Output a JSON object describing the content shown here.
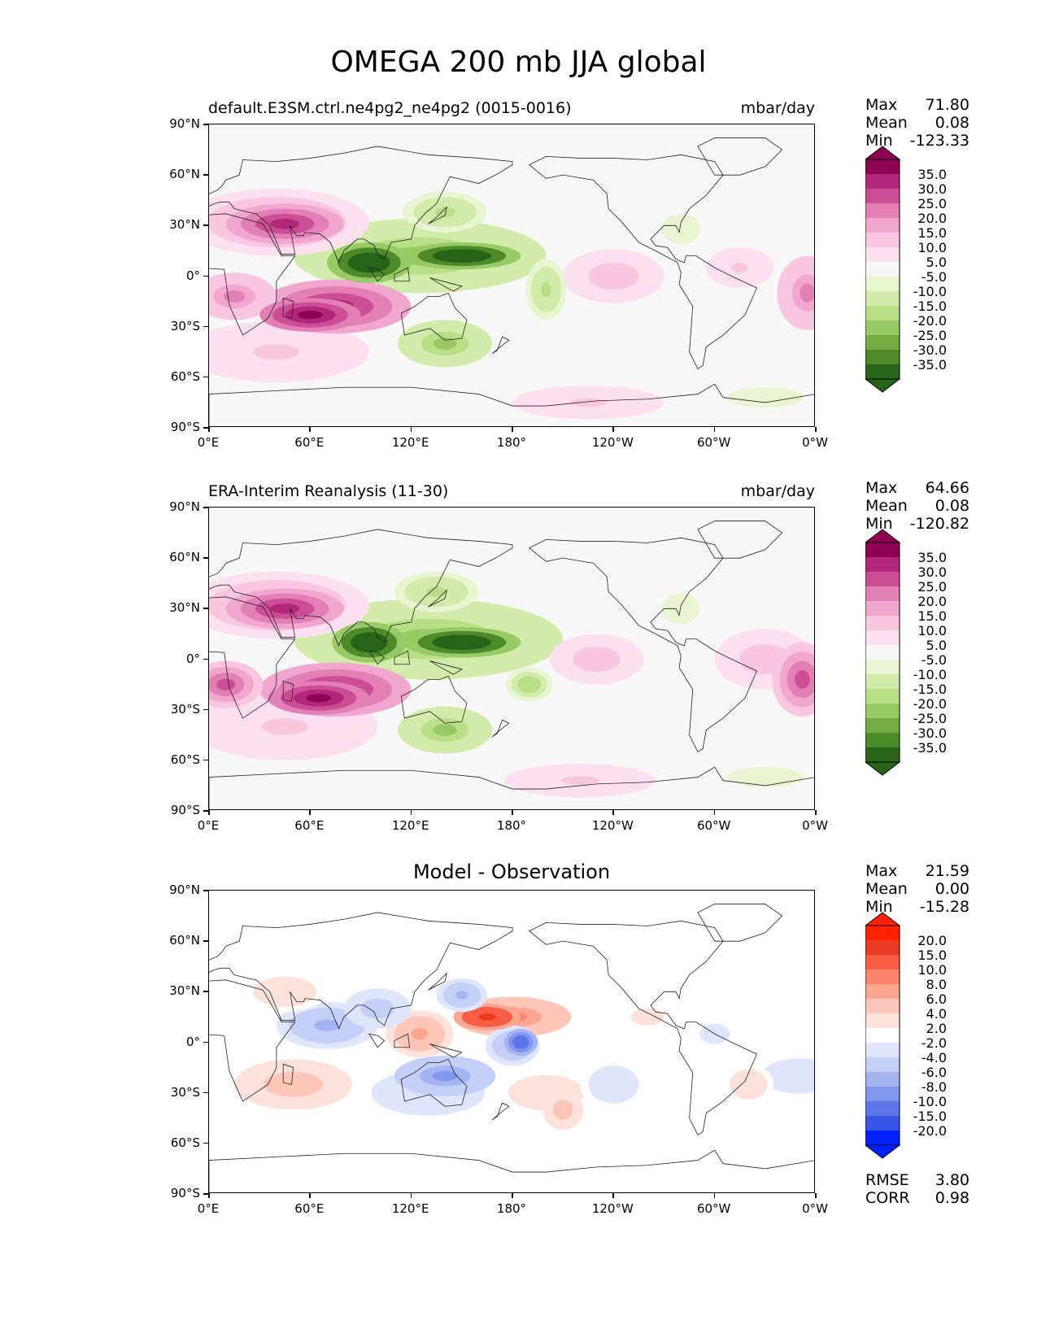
{
  "figure": {
    "title": "OMEGA 200 mb JJA global"
  },
  "axis": {
    "lat_ticks": [
      "90°N",
      "60°N",
      "30°N",
      "0°",
      "30°S",
      "60°S",
      "90°S"
    ],
    "lon_ticks": [
      "0°E",
      "60°E",
      "120°E",
      "180°",
      "120°W",
      "60°W",
      "0°W"
    ]
  },
  "colors": {
    "pos_ramp": [
      "#f7f7f7",
      "#fde0ef",
      "#f9c6df",
      "#f1a6cd",
      "#e27fb4",
      "#cc4e97",
      "#b2277a",
      "#8e0152"
    ],
    "neg_ramp": [
      "#f7f7f7",
      "#e8f5d0",
      "#d2ebaa",
      "#b8de86",
      "#97c964",
      "#72ac43",
      "#4d8b28",
      "#276419"
    ],
    "diff_pos": [
      "#ffffff",
      "#fde2dc",
      "#fcc6b8",
      "#fca692",
      "#fb846a",
      "#f65d42",
      "#ea3a22",
      "#ff2200"
    ],
    "diff_neg": [
      "#ffffff",
      "#dfe5fb",
      "#c4cff7",
      "#a4b3f2",
      "#8196ee",
      "#5c76ea",
      "#3955e6",
      "#0022ff"
    ]
  },
  "chart_data": [
    {
      "type": "heatmap",
      "title": "default.E3SM.ctrl.ne4pg2_ne4pg2 (0015-0016)",
      "units": "mbar/day",
      "xlabel": "",
      "ylabel": "",
      "xlim": [
        0,
        360
      ],
      "ylim": [
        -90,
        90
      ],
      "stats": {
        "max_label": "Max",
        "max": "71.80",
        "mean_label": "Mean",
        "mean": "0.08",
        "min_label": "Min",
        "min": "-123.33"
      },
      "colorbar_levels": [
        "35.0",
        "30.0",
        "25.0",
        "20.0",
        "15.0",
        "10.0",
        "5.0",
        "-5.0",
        "-10.0",
        "-15.0",
        "-20.0",
        "-25.0",
        "-30.0",
        "-35.0"
      ],
      "features": [
        {
          "lon": 60,
          "lat": -23,
          "value": 40,
          "rx": 30,
          "ry": 10
        },
        {
          "lon": 75,
          "lat": -18,
          "value": 30,
          "rx": 45,
          "ry": 16
        },
        {
          "lon": 15,
          "lat": -12,
          "value": 20,
          "rx": 25,
          "ry": 14
        },
        {
          "lon": 45,
          "lat": 31,
          "value": 30,
          "rx": 35,
          "ry": 12
        },
        {
          "lon": 40,
          "lat": 32,
          "value": 15,
          "rx": 55,
          "ry": 20
        },
        {
          "lon": 40,
          "lat": -45,
          "value": 10,
          "rx": 55,
          "ry": 18
        },
        {
          "lon": 95,
          "lat": 8,
          "value": -45,
          "rx": 25,
          "ry": 12
        },
        {
          "lon": 150,
          "lat": 12,
          "value": -45,
          "rx": 35,
          "ry": 8
        },
        {
          "lon": 125,
          "lat": 12,
          "value": -20,
          "rx": 75,
          "ry": 22
        },
        {
          "lon": 140,
          "lat": 38,
          "value": -15,
          "rx": 25,
          "ry": 12
        },
        {
          "lon": 140,
          "lat": -40,
          "value": -20,
          "rx": 28,
          "ry": 14
        },
        {
          "lon": 200,
          "lat": -8,
          "value": -15,
          "rx": 12,
          "ry": 18
        },
        {
          "lon": 240,
          "lat": 0,
          "value": 12,
          "rx": 30,
          "ry": 16
        },
        {
          "lon": 355,
          "lat": -10,
          "value": 20,
          "rx": 18,
          "ry": 22
        },
        {
          "lon": 315,
          "lat": 5,
          "value": 10,
          "rx": 20,
          "ry": 12
        },
        {
          "lon": 280,
          "lat": 28,
          "value": -8,
          "rx": 15,
          "ry": 12
        },
        {
          "lon": 225,
          "lat": -75,
          "value": 10,
          "rx": 45,
          "ry": 10
        },
        {
          "lon": 330,
          "lat": -72,
          "value": -8,
          "rx": 30,
          "ry": 8
        }
      ]
    },
    {
      "type": "heatmap",
      "title": "ERA-Interim Reanalysis (11-30)",
      "units": "mbar/day",
      "xlabel": "",
      "ylabel": "",
      "xlim": [
        0,
        360
      ],
      "ylim": [
        -90,
        90
      ],
      "stats": {
        "max_label": "Max",
        "max": "64.66",
        "mean_label": "Mean",
        "mean": "0.08",
        "min_label": "Min",
        "min": "-120.82"
      },
      "colorbar_levels": [
        "35.0",
        "30.0",
        "25.0",
        "20.0",
        "15.0",
        "10.0",
        "5.0",
        "-5.0",
        "-10.0",
        "-15.0",
        "-20.0",
        "-25.0",
        "-30.0",
        "-35.0"
      ],
      "features": [
        {
          "lon": 65,
          "lat": -23,
          "value": 40,
          "rx": 30,
          "ry": 10
        },
        {
          "lon": 75,
          "lat": -18,
          "value": 30,
          "rx": 45,
          "ry": 16
        },
        {
          "lon": 10,
          "lat": -15,
          "value": 25,
          "rx": 22,
          "ry": 14
        },
        {
          "lon": 45,
          "lat": 30,
          "value": 30,
          "rx": 35,
          "ry": 12
        },
        {
          "lon": 40,
          "lat": 32,
          "value": 15,
          "rx": 55,
          "ry": 20
        },
        {
          "lon": 45,
          "lat": -40,
          "value": 10,
          "rx": 55,
          "ry": 20
        },
        {
          "lon": 95,
          "lat": 10,
          "value": -45,
          "rx": 22,
          "ry": 12
        },
        {
          "lon": 150,
          "lat": 10,
          "value": -45,
          "rx": 35,
          "ry": 9
        },
        {
          "lon": 130,
          "lat": 12,
          "value": -20,
          "rx": 80,
          "ry": 24
        },
        {
          "lon": 135,
          "lat": 40,
          "value": -15,
          "rx": 25,
          "ry": 12
        },
        {
          "lon": 140,
          "lat": -42,
          "value": -20,
          "rx": 28,
          "ry": 14
        },
        {
          "lon": 190,
          "lat": -15,
          "value": -18,
          "rx": 14,
          "ry": 10
        },
        {
          "lon": 230,
          "lat": 0,
          "value": 12,
          "rx": 28,
          "ry": 15
        },
        {
          "lon": 352,
          "lat": -12,
          "value": 25,
          "rx": 18,
          "ry": 22
        },
        {
          "lon": 330,
          "lat": 0,
          "value": 12,
          "rx": 30,
          "ry": 18
        },
        {
          "lon": 280,
          "lat": 30,
          "value": -8,
          "rx": 15,
          "ry": 12
        },
        {
          "lon": 220,
          "lat": -72,
          "value": 10,
          "rx": 45,
          "ry": 10
        },
        {
          "lon": 330,
          "lat": -70,
          "value": -8,
          "rx": 30,
          "ry": 8
        }
      ]
    },
    {
      "type": "heatmap",
      "title": "Model - Observation",
      "units": "",
      "xlabel": "",
      "ylabel": "",
      "xlim": [
        0,
        360
      ],
      "ylim": [
        -90,
        90
      ],
      "stats": {
        "max_label": "Max",
        "max": "21.59",
        "mean_label": "Mean",
        "mean": "0.00",
        "min_label": "Min",
        "min": "-15.28"
      },
      "colorbar_levels": [
        "20.0",
        "15.0",
        "10.0",
        "8.0",
        "6.0",
        "4.0",
        "2.0",
        "-2.0",
        "-4.0",
        "-6.0",
        "-8.0",
        "-10.0",
        "-15.0",
        "-20.0"
      ],
      "metrics": {
        "rmse_label": "RMSE",
        "rmse": "3.80",
        "corr_label": "CORR",
        "corr": "0.98"
      },
      "features": [
        {
          "lon": 165,
          "lat": 15,
          "value": 15,
          "rx": 20,
          "ry": 8
        },
        {
          "lon": 180,
          "lat": 15,
          "value": 8,
          "rx": 35,
          "ry": 12
        },
        {
          "lon": 125,
          "lat": 5,
          "value": 6,
          "rx": 20,
          "ry": 14
        },
        {
          "lon": 185,
          "lat": 0,
          "value": -14,
          "rx": 10,
          "ry": 8
        },
        {
          "lon": 180,
          "lat": -2,
          "value": -6,
          "rx": 16,
          "ry": 12
        },
        {
          "lon": 70,
          "lat": 10,
          "value": -6,
          "rx": 30,
          "ry": 14
        },
        {
          "lon": 100,
          "lat": 20,
          "value": -5,
          "rx": 20,
          "ry": 12
        },
        {
          "lon": 150,
          "lat": 28,
          "value": -6,
          "rx": 15,
          "ry": 10
        },
        {
          "lon": 140,
          "lat": -20,
          "value": -8,
          "rx": 30,
          "ry": 12
        },
        {
          "lon": 130,
          "lat": -30,
          "value": -3,
          "rx": 45,
          "ry": 18
        },
        {
          "lon": 50,
          "lat": -25,
          "value": 5,
          "rx": 35,
          "ry": 15
        },
        {
          "lon": 45,
          "lat": 30,
          "value": 3,
          "rx": 25,
          "ry": 12
        },
        {
          "lon": 200,
          "lat": -30,
          "value": 3,
          "rx": 30,
          "ry": 14
        },
        {
          "lon": 210,
          "lat": -40,
          "value": 5,
          "rx": 12,
          "ry": 12
        },
        {
          "lon": 240,
          "lat": -25,
          "value": -3,
          "rx": 20,
          "ry": 15
        },
        {
          "lon": 320,
          "lat": -25,
          "value": 3,
          "rx": 15,
          "ry": 12
        },
        {
          "lon": 350,
          "lat": -20,
          "value": -3,
          "rx": 30,
          "ry": 14
        },
        {
          "lon": 300,
          "lat": 5,
          "value": -3,
          "rx": 12,
          "ry": 8
        },
        {
          "lon": 260,
          "lat": 15,
          "value": 2.5,
          "rx": 20,
          "ry": 10
        }
      ]
    }
  ]
}
